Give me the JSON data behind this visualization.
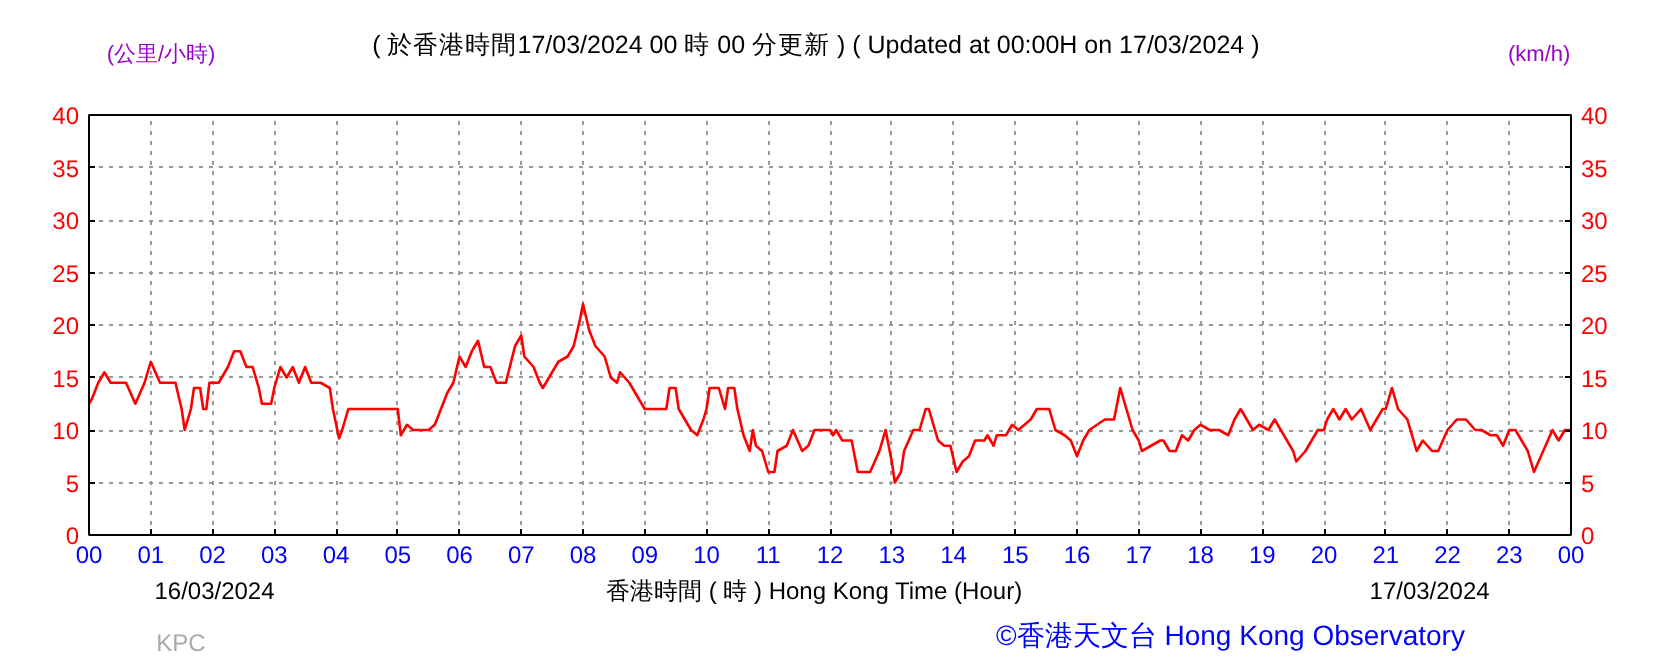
{
  "chart_data": {
    "type": "line",
    "title": "( 於香港時間17/03/2024 00 時 00 分更新 ) ( Updated at 00:00H on 17/03/2024 )",
    "xlabel": "香港時間 ( 時 )  Hong Kong Time (Hour)",
    "ylabel": "(公里/小時)",
    "y2label": "(km/h)",
    "annotations": [
      "16/03/2024",
      "17/03/2024",
      "KPC",
      "©香港天文台 Hong Kong Observatory"
    ],
    "x": [
      0,
      0.05,
      0.15,
      0.25,
      0.35,
      0.5,
      0.6,
      0.75,
      0.9,
      1.0,
      1.15,
      1.4,
      1.5,
      1.55,
      1.65,
      1.7,
      1.8,
      1.85,
      1.9,
      1.95,
      2.1,
      2.25,
      2.35,
      2.45,
      2.55,
      2.65,
      2.75,
      2.8,
      2.95,
      3.0,
      3.1,
      3.2,
      3.3,
      3.4,
      3.5,
      3.6,
      3.75,
      3.9,
      3.95,
      4.05,
      4.1,
      4.2,
      4.5,
      4.8,
      5.0,
      5.05,
      5.15,
      5.25,
      5.4,
      5.5,
      5.6,
      5.7,
      5.8,
      5.9,
      6.0,
      6.1,
      6.2,
      6.3,
      6.4,
      6.5,
      6.6,
      6.75,
      6.9,
      7.0,
      7.05,
      7.2,
      7.3,
      7.35,
      7.45,
      7.6,
      7.75,
      7.85,
      7.95,
      8.0,
      8.1,
      8.2,
      8.35,
      8.45,
      8.55,
      8.6,
      8.75,
      8.9,
      9.0,
      9.1,
      9.35,
      9.4,
      9.5,
      9.55,
      9.65,
      9.75,
      9.85,
      9.95,
      10.0,
      10.05,
      10.2,
      10.3,
      10.35,
      10.45,
      10.5,
      10.6,
      10.7,
      10.75,
      10.8,
      10.9,
      11.0,
      11.1,
      11.15,
      11.3,
      11.4,
      11.55,
      11.65,
      11.75,
      12.0,
      12.05,
      12.1,
      12.2,
      12.35,
      12.45,
      12.65,
      12.8,
      12.9,
      13.0,
      13.05,
      13.15,
      13.2,
      13.35,
      13.45,
      13.55,
      13.6,
      13.75,
      13.85,
      13.95,
      14.05,
      14.15,
      14.25,
      14.35,
      14.5,
      14.55,
      14.65,
      14.7,
      14.85,
      14.95,
      15.05,
      15.25,
      15.35,
      15.55,
      15.65,
      15.8,
      15.9,
      16.0,
      16.1,
      16.2,
      16.45,
      16.6,
      16.65,
      16.7,
      16.8,
      16.9,
      17.0,
      17.05,
      17.35,
      17.4,
      17.5,
      17.6,
      17.7,
      17.8,
      17.9,
      18.0,
      18.15,
      18.3,
      18.45,
      18.55,
      18.65,
      18.75,
      18.85,
      18.95,
      19.1,
      19.2,
      19.3,
      19.4,
      19.5,
      19.55,
      19.7,
      19.9,
      20.0,
      20.05,
      20.15,
      20.25,
      20.35,
      20.45,
      20.6,
      20.75,
      20.95,
      21.0,
      21.1,
      21.2,
      21.35,
      21.4,
      21.5,
      21.6,
      21.75,
      21.85,
      22.0,
      22.15,
      22.3,
      22.45,
      22.55,
      22.7,
      22.8,
      22.9,
      23.0,
      23.1,
      23.2,
      23.3,
      23.4,
      23.55,
      23.7,
      23.8,
      23.9,
      24
    ],
    "series": [
      {
        "color": "#ff0000",
        "values": [
          12.5,
          13,
          14.5,
          15.5,
          14.5,
          14.5,
          14.5,
          12.5,
          14.5,
          16.5,
          14.5,
          14.5,
          12,
          10,
          12,
          14,
          14,
          12,
          12,
          14.5,
          14.5,
          16,
          17.5,
          17.5,
          16,
          16,
          14,
          12.5,
          12.5,
          14,
          16,
          15,
          16,
          14.5,
          16,
          14.5,
          14.5,
          14,
          12,
          9.2,
          10,
          12,
          12,
          12,
          12,
          9.5,
          10.5,
          10,
          10,
          10,
          10.5,
          12,
          13.5,
          14.5,
          17,
          16,
          17.5,
          18.5,
          16,
          16,
          14.5,
          14.5,
          18,
          19,
          17,
          16,
          14.5,
          14,
          15,
          16.5,
          17,
          18,
          20.5,
          22,
          19.5,
          18,
          17,
          15,
          14.5,
          15.5,
          14.5,
          13,
          12,
          12,
          12,
          14,
          14,
          12,
          11,
          10,
          9.5,
          11,
          12,
          14,
          14,
          12,
          14,
          14,
          12,
          9.5,
          8,
          10,
          8.5,
          8,
          6,
          6,
          8,
          8.5,
          10,
          8,
          8.5,
          10,
          10,
          9.5,
          10,
          9,
          9,
          6,
          6,
          8,
          10,
          7,
          5,
          6,
          8,
          10,
          10,
          12,
          12,
          9,
          8.5,
          8.5,
          6,
          7,
          7.5,
          9,
          9,
          9.5,
          8.5,
          9.5,
          9.5,
          10.5,
          10,
          11,
          12,
          12,
          10,
          9.5,
          9,
          7.5,
          9,
          10,
          11,
          11,
          12.5,
          14,
          12,
          10,
          9,
          8,
          9,
          9,
          8,
          8,
          9.5,
          9,
          10,
          10.5,
          10,
          10,
          9.5,
          11,
          12,
          11,
          10,
          10.5,
          10,
          11,
          10,
          9,
          8,
          7,
          8,
          10,
          10,
          11,
          12,
          11,
          12,
          11,
          12,
          10,
          12,
          12,
          14,
          12,
          11,
          10,
          8,
          9,
          8,
          8,
          10,
          11,
          11,
          10,
          10,
          9.5,
          9.5,
          8.5,
          10,
          10,
          9,
          8,
          6,
          8,
          10,
          9,
          10,
          10
        ]
      }
    ],
    "xlim": [
      0,
      24
    ],
    "ylim": [
      0,
      40
    ],
    "y2lim": [
      0,
      40
    ],
    "xticks": [
      {
        "value": 0,
        "label": "00"
      },
      {
        "value": 1,
        "label": "01"
      },
      {
        "value": 2,
        "label": "02"
      },
      {
        "value": 3,
        "label": "03"
      },
      {
        "value": 4,
        "label": "04"
      },
      {
        "value": 5,
        "label": "05"
      },
      {
        "value": 6,
        "label": "06"
      },
      {
        "value": 7,
        "label": "07"
      },
      {
        "value": 8,
        "label": "08"
      },
      {
        "value": 9,
        "label": "09"
      },
      10,
      11,
      12,
      13,
      14,
      15,
      16,
      17,
      18,
      19,
      20,
      21,
      22,
      23,
      {
        "value": 24,
        "label": "00"
      }
    ],
    "yticks": [
      0,
      5,
      10,
      15,
      20,
      25,
      30,
      35,
      40
    ],
    "y2ticks": [
      0,
      5,
      10,
      15,
      20,
      25,
      30,
      35,
      40
    ],
    "grid": true,
    "line_style": "solid",
    "marker": "none"
  }
}
